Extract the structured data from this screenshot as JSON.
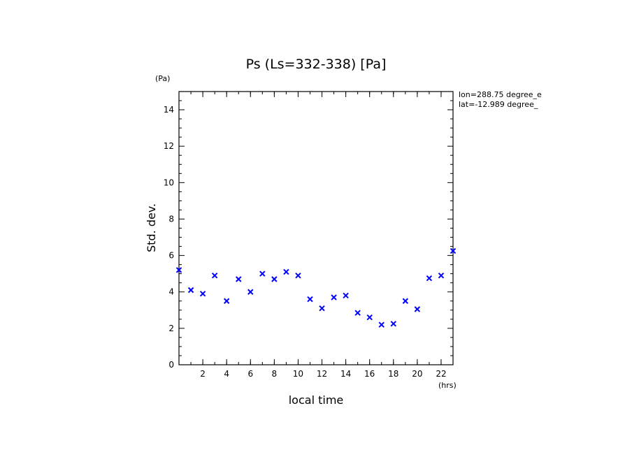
{
  "chart_data": {
    "type": "scatter",
    "title": "Ps (Ls=332-338) [Pa]",
    "xlabel": "local time",
    "ylabel": "Std. dev.",
    "x_unit": "(hrs)",
    "y_unit": "(Pa)",
    "xlim": [
      0,
      23
    ],
    "ylim": [
      0,
      15
    ],
    "x_ticks": [
      2,
      4,
      6,
      8,
      10,
      12,
      14,
      16,
      18,
      20,
      22
    ],
    "y_ticks": [
      0,
      2,
      4,
      6,
      8,
      10,
      12,
      14
    ],
    "grid": false,
    "marker": "x",
    "color": "#0000ff",
    "annotations": [
      "lon=288.75 degree_e",
      "lat=-12.989 degree_"
    ],
    "series": [
      {
        "x": [
          0,
          1,
          2,
          3,
          4,
          5,
          6,
          7,
          8,
          9,
          10,
          11,
          12,
          13,
          14,
          15,
          16,
          17,
          18,
          19,
          20,
          21,
          22,
          23
        ],
        "y": [
          5.2,
          4.1,
          3.9,
          4.9,
          3.5,
          4.7,
          4.0,
          5.0,
          4.7,
          5.1,
          4.9,
          3.6,
          3.1,
          3.7,
          3.8,
          2.85,
          2.6,
          2.2,
          2.25,
          3.5,
          3.05,
          4.75,
          4.9,
          6.25
        ]
      }
    ]
  }
}
